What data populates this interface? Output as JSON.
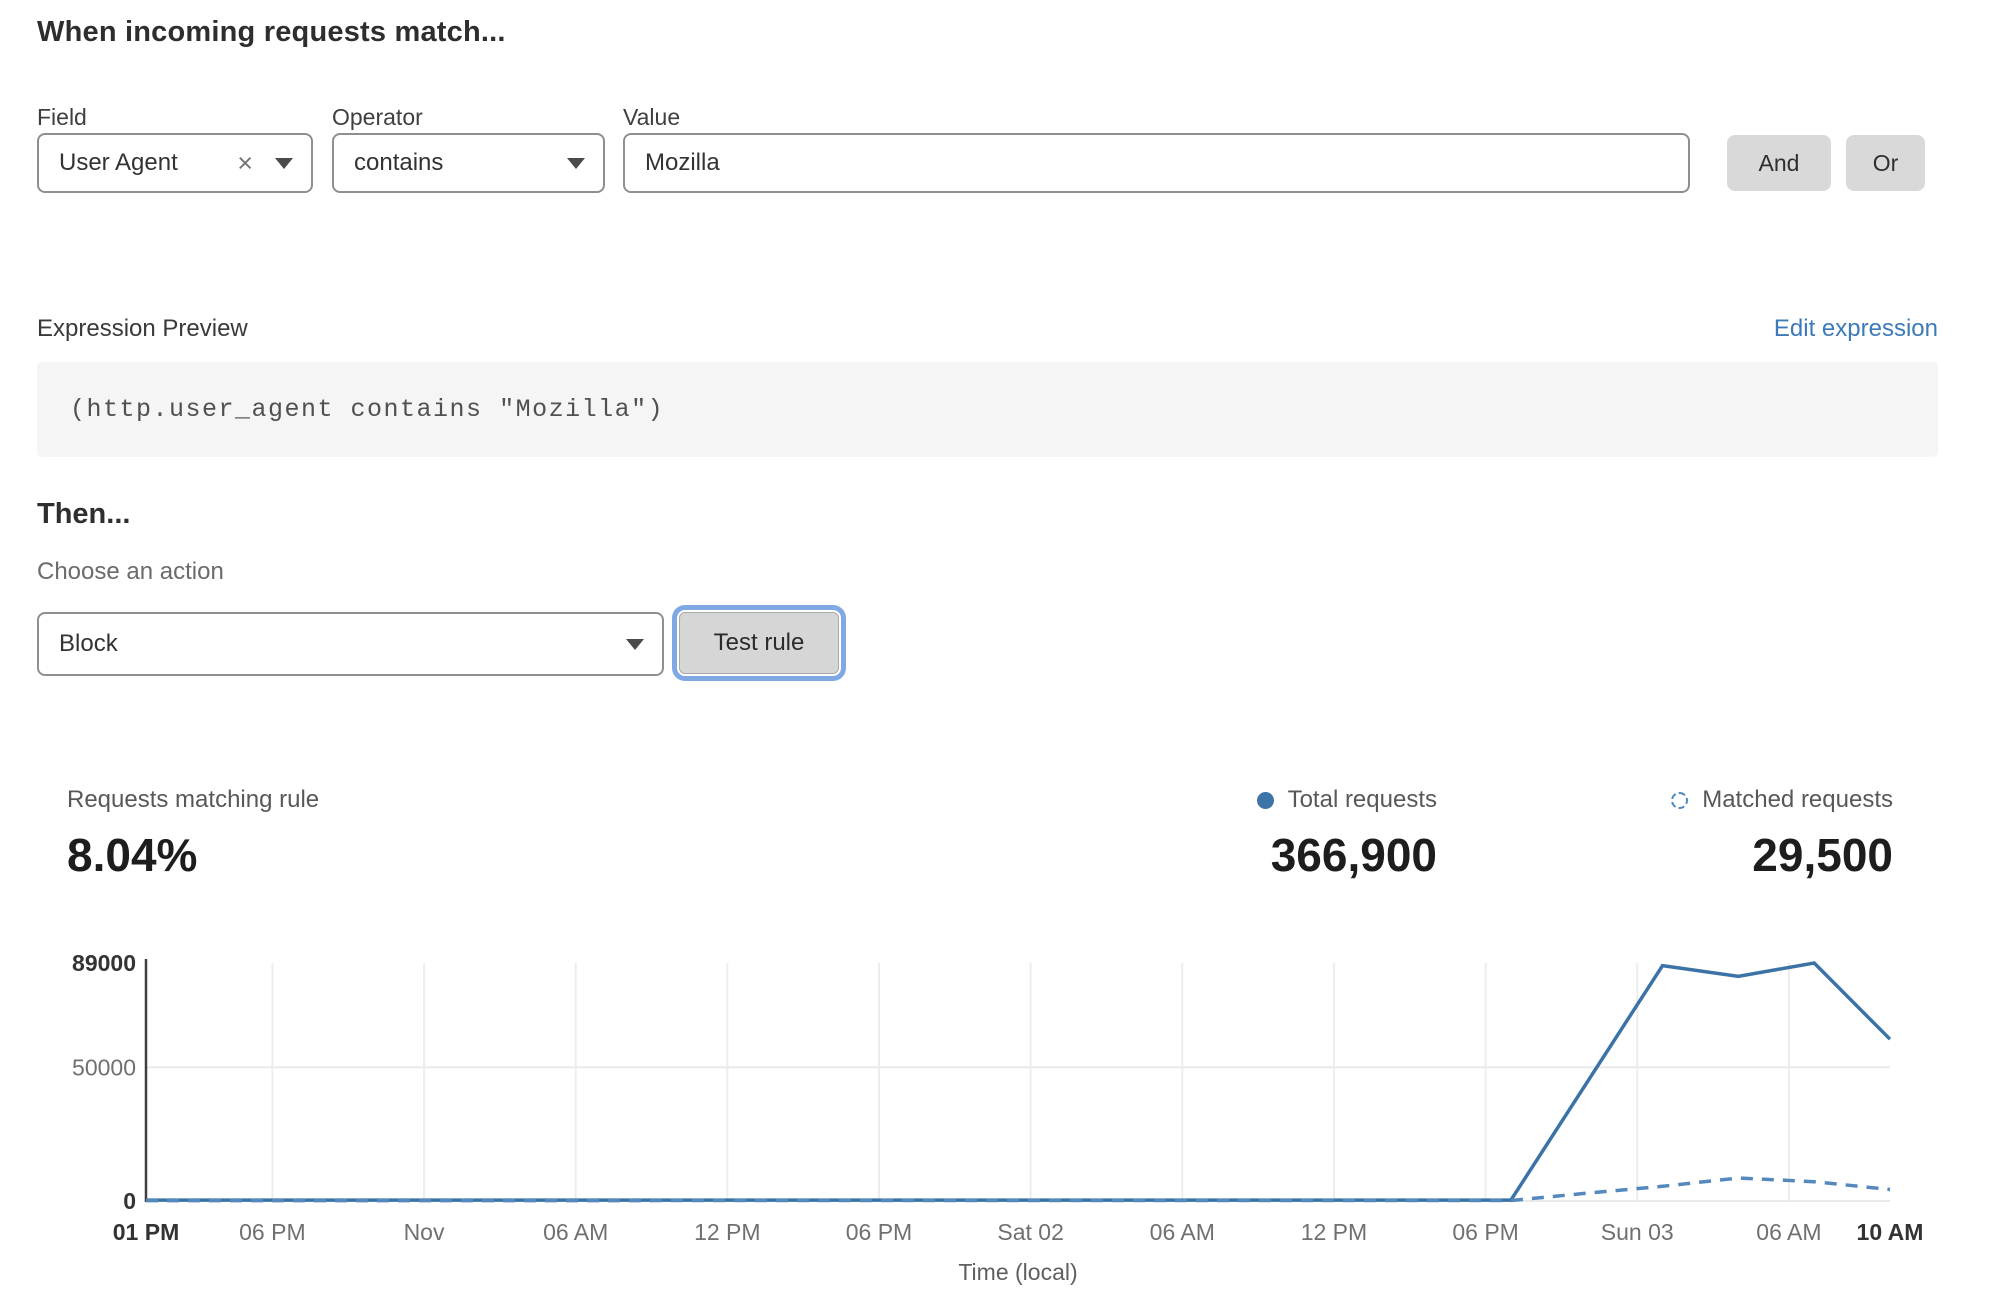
{
  "colors": {
    "accent_link": "#3d7ab8",
    "focus_ring": "#7fa8e5",
    "total_series": "#3c73a7",
    "matched_series": "#5589be"
  },
  "rule_builder": {
    "title": "When incoming requests match...",
    "field": {
      "label": "Field",
      "value": "User Agent"
    },
    "operator": {
      "label": "Operator",
      "value": "contains"
    },
    "value": {
      "label": "Value",
      "value": "Mozilla"
    },
    "and_label": "And",
    "or_label": "Or"
  },
  "expression": {
    "label": "Expression Preview",
    "edit_link": "Edit expression",
    "code": "(http.user_agent contains \"Mozilla\")"
  },
  "action": {
    "title": "Then...",
    "choose_label": "Choose an action",
    "value": "Block",
    "test_button": "Test rule"
  },
  "stats": {
    "matching": {
      "label": "Requests matching rule",
      "value": "8.04%"
    },
    "total": {
      "label": "Total requests",
      "value": "366,900",
      "color": "#3d74a8"
    },
    "matched": {
      "label": "Matched requests",
      "value": "29,500",
      "color": "#4e87c2"
    }
  },
  "chart_data": {
    "type": "line",
    "title": "",
    "xlabel": "Time (local)",
    "ylabel": "",
    "ylim": [
      0,
      89000
    ],
    "x_hours_range": [
      0,
      69
    ],
    "grid": true,
    "legend_position": "top-right",
    "yticks": [
      {
        "value": 0,
        "label": "0",
        "bold": true,
        "grid": true
      },
      {
        "value": 50000,
        "label": "50000",
        "bold": false,
        "grid": true
      },
      {
        "value": 89000,
        "label": "89000",
        "bold": true,
        "grid": false
      }
    ],
    "xticks": [
      {
        "t": 0,
        "label": "01 PM",
        "bold": true,
        "grid": false
      },
      {
        "t": 5,
        "label": "06 PM",
        "bold": false,
        "grid": true
      },
      {
        "t": 11,
        "label": "Nov",
        "bold": false,
        "grid": true
      },
      {
        "t": 17,
        "label": "06 AM",
        "bold": false,
        "grid": true
      },
      {
        "t": 23,
        "label": "12 PM",
        "bold": false,
        "grid": true
      },
      {
        "t": 29,
        "label": "06 PM",
        "bold": false,
        "grid": true
      },
      {
        "t": 35,
        "label": "Sat 02",
        "bold": false,
        "grid": true
      },
      {
        "t": 41,
        "label": "06 AM",
        "bold": false,
        "grid": true
      },
      {
        "t": 47,
        "label": "12 PM",
        "bold": false,
        "grid": true
      },
      {
        "t": 53,
        "label": "06 PM",
        "bold": false,
        "grid": true
      },
      {
        "t": 59,
        "label": "Sun 03",
        "bold": false,
        "grid": true
      },
      {
        "t": 65,
        "label": "06 AM",
        "bold": false,
        "grid": true
      },
      {
        "t": 69,
        "label": "10 AM",
        "bold": true,
        "grid": false
      }
    ],
    "series": [
      {
        "name": "Total requests",
        "style": "solid",
        "color": "#3c73a7",
        "points": [
          [
            0,
            350
          ],
          [
            54,
            350
          ],
          [
            60,
            88000
          ],
          [
            63,
            84000
          ],
          [
            66,
            89000
          ],
          [
            69,
            60500
          ]
        ]
      },
      {
        "name": "Matched requests",
        "style": "dashed",
        "color": "#5589be",
        "points": [
          [
            0,
            150
          ],
          [
            54,
            200
          ],
          [
            57,
            2900
          ],
          [
            60,
            5500
          ],
          [
            63,
            8600
          ],
          [
            66,
            7200
          ],
          [
            69,
            4300
          ]
        ]
      }
    ]
  }
}
